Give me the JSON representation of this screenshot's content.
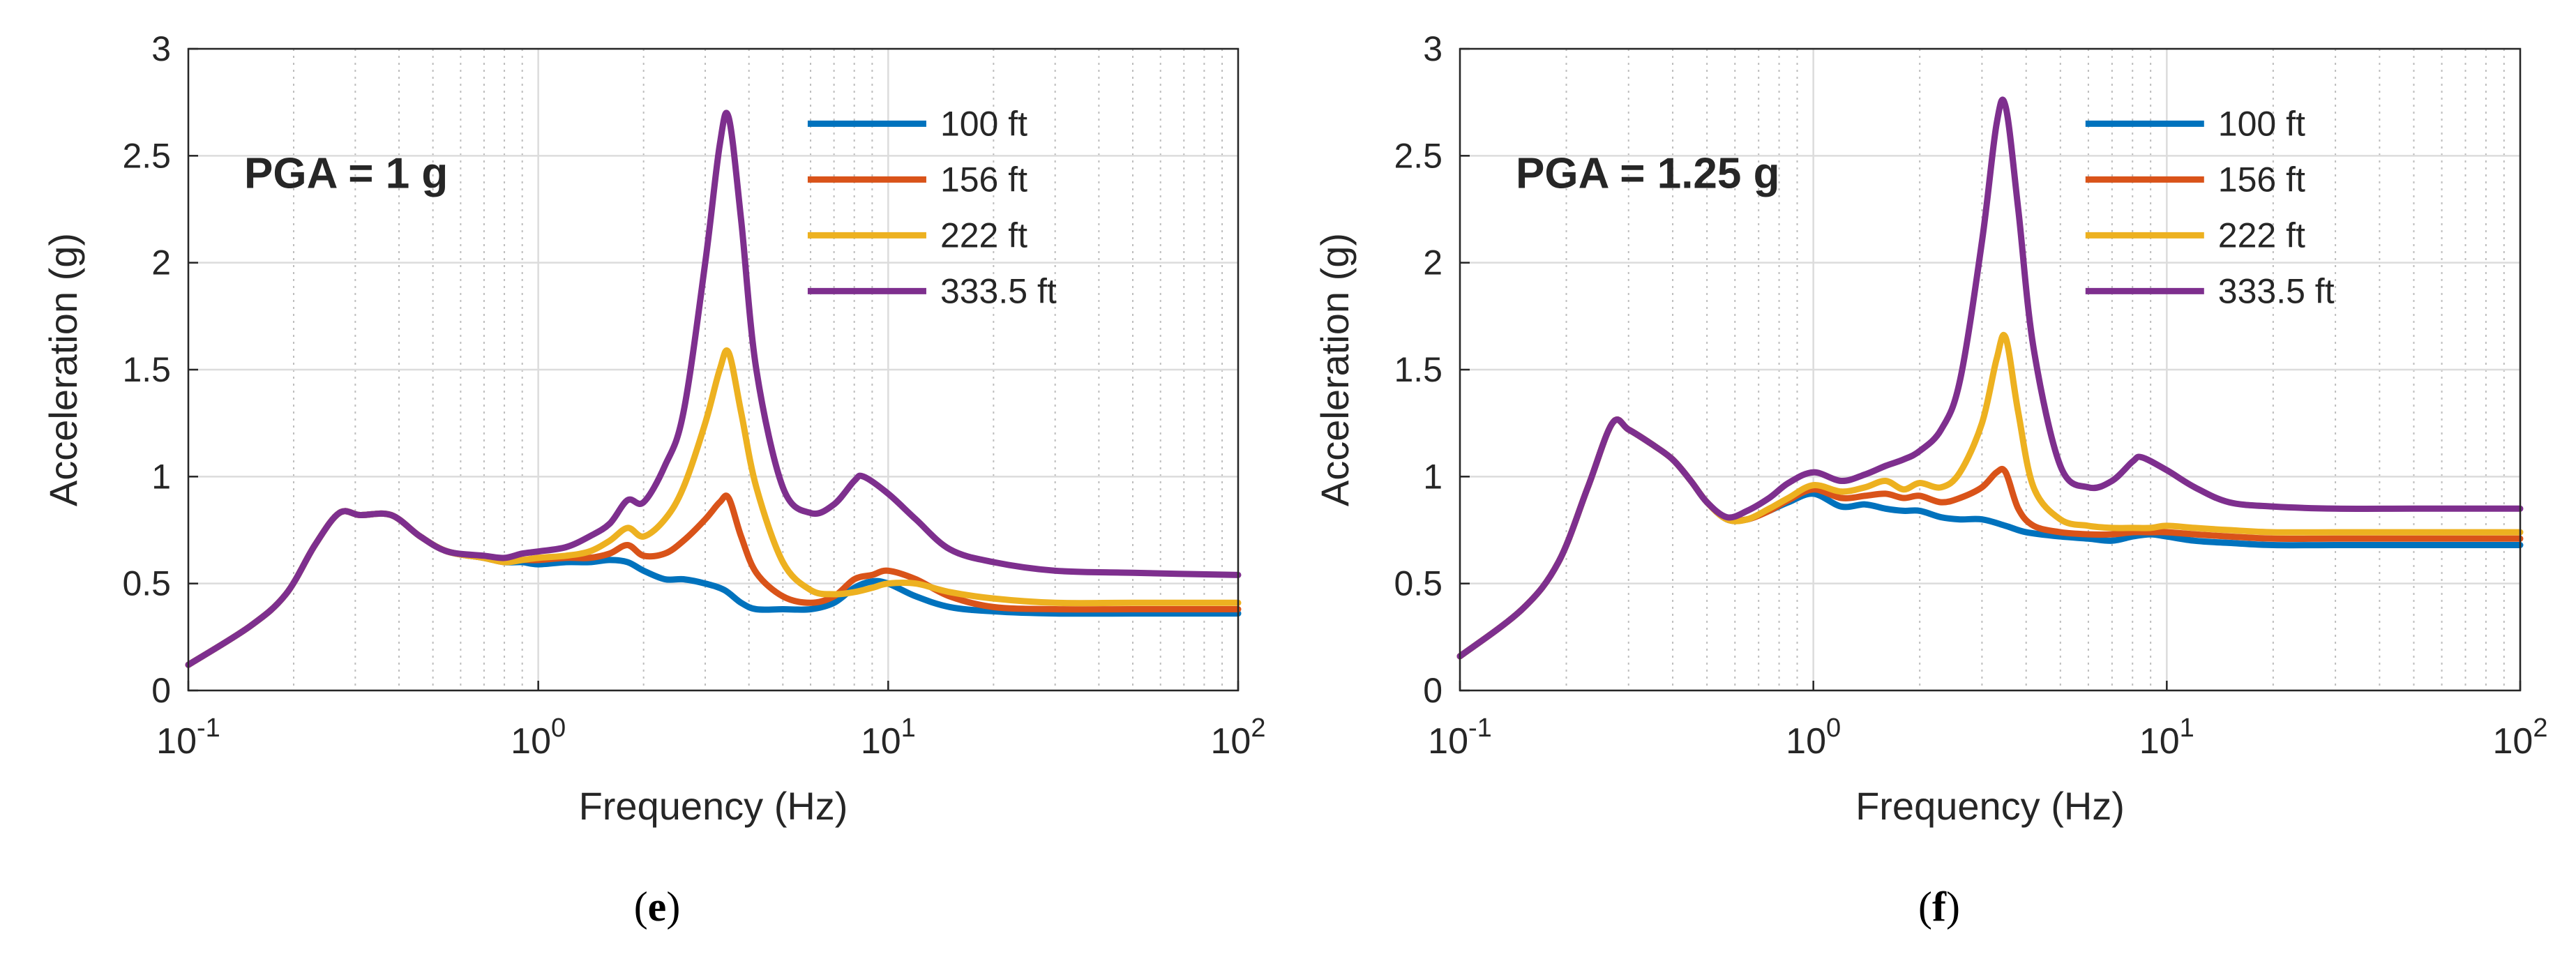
{
  "colors": {
    "s100": "#0072BD",
    "s156": "#D95319",
    "s222": "#EDB120",
    "s333": "#7E2F8E",
    "axis": "#262626",
    "grid_major": "#dcdcdc",
    "grid_minor": "#bdbdbd"
  },
  "chart_data": [
    {
      "type": "line",
      "caption_letter": "e",
      "annotation": "PGA = 1 g",
      "xlabel": "Frequency (Hz)",
      "ylabel": "Acceleration (g)",
      "xscale": "log",
      "xlim": [
        0.1,
        100
      ],
      "ylim": [
        0,
        3
      ],
      "xticks": [
        {
          "value": 0.1,
          "base": "10",
          "exp": "-1"
        },
        {
          "value": 1,
          "base": "10",
          "exp": "0"
        },
        {
          "value": 10,
          "base": "10",
          "exp": "1"
        },
        {
          "value": 100,
          "base": "10",
          "exp": "2"
        }
      ],
      "yticks": [
        "0",
        "0.5",
        "1",
        "1.5",
        "2",
        "2.5",
        "3"
      ],
      "grid": true,
      "legend_position": "top-right",
      "series": [
        {
          "name": "100 ft",
          "color_key": "s100",
          "x": [
            0.1,
            0.15,
            0.19,
            0.23,
            0.27,
            0.31,
            0.38,
            0.46,
            0.55,
            0.7,
            0.8,
            0.9,
            1.0,
            1.2,
            1.4,
            1.6,
            1.8,
            2.0,
            2.3,
            2.6,
            3.0,
            3.4,
            3.8,
            4.2,
            5.0,
            6.0,
            7.0,
            8.0,
            9.0,
            10.0,
            12.0,
            15.0,
            20.0,
            30.0,
            50.0,
            100.0
          ],
          "y": [
            0.12,
            0.3,
            0.45,
            0.68,
            0.83,
            0.82,
            0.82,
            0.72,
            0.65,
            0.62,
            0.6,
            0.6,
            0.59,
            0.6,
            0.6,
            0.61,
            0.6,
            0.56,
            0.52,
            0.52,
            0.5,
            0.47,
            0.41,
            0.38,
            0.38,
            0.38,
            0.41,
            0.48,
            0.51,
            0.5,
            0.44,
            0.39,
            0.37,
            0.36,
            0.36,
            0.36
          ]
        },
        {
          "name": "156 ft",
          "color_key": "s156",
          "x": [
            0.1,
            0.15,
            0.19,
            0.23,
            0.27,
            0.31,
            0.38,
            0.46,
            0.55,
            0.7,
            0.8,
            0.9,
            1.0,
            1.2,
            1.4,
            1.6,
            1.8,
            2.0,
            2.3,
            2.6,
            3.0,
            3.3,
            3.5,
            3.8,
            4.2,
            5.0,
            6.0,
            7.0,
            8.0,
            9.0,
            10.0,
            12.0,
            15.0,
            20.0,
            30.0,
            50.0,
            100.0
          ],
          "y": [
            0.12,
            0.3,
            0.45,
            0.68,
            0.83,
            0.82,
            0.82,
            0.72,
            0.65,
            0.62,
            0.6,
            0.61,
            0.61,
            0.62,
            0.62,
            0.64,
            0.68,
            0.63,
            0.64,
            0.7,
            0.8,
            0.88,
            0.9,
            0.72,
            0.55,
            0.44,
            0.41,
            0.44,
            0.52,
            0.54,
            0.56,
            0.52,
            0.44,
            0.39,
            0.38,
            0.38,
            0.38
          ]
        },
        {
          "name": "222 ft",
          "color_key": "s222",
          "x": [
            0.1,
            0.15,
            0.19,
            0.23,
            0.27,
            0.31,
            0.38,
            0.46,
            0.55,
            0.7,
            0.8,
            0.9,
            1.0,
            1.2,
            1.4,
            1.6,
            1.8,
            2.0,
            2.3,
            2.6,
            3.0,
            3.3,
            3.5,
            3.8,
            4.2,
            5.0,
            6.0,
            7.0,
            8.0,
            9.0,
            10.0,
            12.0,
            15.0,
            20.0,
            30.0,
            50.0,
            100.0
          ],
          "y": [
            0.12,
            0.3,
            0.45,
            0.68,
            0.83,
            0.82,
            0.82,
            0.72,
            0.65,
            0.62,
            0.6,
            0.61,
            0.62,
            0.63,
            0.65,
            0.7,
            0.76,
            0.72,
            0.8,
            0.95,
            1.25,
            1.5,
            1.58,
            1.3,
            0.95,
            0.6,
            0.47,
            0.45,
            0.46,
            0.48,
            0.5,
            0.5,
            0.46,
            0.43,
            0.41,
            0.41,
            0.41
          ]
        },
        {
          "name": "333.5 ft",
          "color_key": "s333",
          "x": [
            0.1,
            0.15,
            0.19,
            0.23,
            0.27,
            0.31,
            0.38,
            0.46,
            0.55,
            0.7,
            0.8,
            0.9,
            1.0,
            1.2,
            1.4,
            1.6,
            1.8,
            2.0,
            2.3,
            2.6,
            3.0,
            3.3,
            3.5,
            3.8,
            4.2,
            5.0,
            6.0,
            7.0,
            8.0,
            8.5,
            10.0,
            12.0,
            15.0,
            20.0,
            30.0,
            50.0,
            100.0
          ],
          "y": [
            0.12,
            0.3,
            0.45,
            0.68,
            0.83,
            0.82,
            0.82,
            0.72,
            0.65,
            0.63,
            0.62,
            0.64,
            0.65,
            0.67,
            0.72,
            0.78,
            0.89,
            0.88,
            1.05,
            1.3,
            2.0,
            2.55,
            2.68,
            2.2,
            1.5,
            0.95,
            0.83,
            0.87,
            0.98,
            1.0,
            0.92,
            0.8,
            0.66,
            0.6,
            0.56,
            0.55,
            0.54
          ]
        }
      ]
    },
    {
      "type": "line",
      "caption_letter": "f",
      "annotation": "PGA = 1.25 g",
      "xlabel": "Frequency (Hz)",
      "ylabel": "Acceleration (g)",
      "xscale": "log",
      "xlim": [
        0.1,
        100
      ],
      "ylim": [
        0,
        3
      ],
      "xticks": [
        {
          "value": 0.1,
          "base": "10",
          "exp": "-1"
        },
        {
          "value": 1,
          "base": "10",
          "exp": "0"
        },
        {
          "value": 10,
          "base": "10",
          "exp": "1"
        },
        {
          "value": 100,
          "base": "10",
          "exp": "2"
        }
      ],
      "yticks": [
        "0",
        "0.5",
        "1",
        "1.5",
        "2",
        "2.5",
        "3"
      ],
      "grid": true,
      "legend_position": "top-right",
      "series": [
        {
          "name": "100 ft",
          "color_key": "s100",
          "x": [
            0.1,
            0.15,
            0.19,
            0.23,
            0.27,
            0.3,
            0.35,
            0.4,
            0.45,
            0.5,
            0.57,
            0.65,
            0.75,
            0.85,
            1.0,
            1.2,
            1.4,
            1.6,
            1.8,
            2.0,
            2.3,
            2.6,
            3.0,
            3.5,
            4.0,
            5.0,
            6.0,
            7.0,
            8.0,
            9.0,
            10.0,
            12.0,
            15.0,
            20.0,
            30.0,
            50.0,
            100.0
          ],
          "y": [
            0.16,
            0.38,
            0.6,
            0.95,
            1.25,
            1.22,
            1.15,
            1.08,
            0.98,
            0.88,
            0.8,
            0.8,
            0.84,
            0.88,
            0.92,
            0.86,
            0.87,
            0.85,
            0.84,
            0.84,
            0.81,
            0.8,
            0.8,
            0.77,
            0.74,
            0.72,
            0.71,
            0.7,
            0.72,
            0.73,
            0.72,
            0.7,
            0.69,
            0.68,
            0.68,
            0.68,
            0.68
          ]
        },
        {
          "name": "156 ft",
          "color_key": "s156",
          "x": [
            0.1,
            0.15,
            0.19,
            0.23,
            0.27,
            0.3,
            0.35,
            0.4,
            0.45,
            0.5,
            0.57,
            0.65,
            0.75,
            0.85,
            1.0,
            1.2,
            1.4,
            1.6,
            1.8,
            2.0,
            2.3,
            2.6,
            3.0,
            3.3,
            3.5,
            3.8,
            4.2,
            5.0,
            6.0,
            7.0,
            8.0,
            9.0,
            10.0,
            12.0,
            15.0,
            20.0,
            30.0,
            50.0,
            100.0
          ],
          "y": [
            0.16,
            0.38,
            0.6,
            0.95,
            1.25,
            1.22,
            1.15,
            1.08,
            0.98,
            0.88,
            0.8,
            0.8,
            0.84,
            0.89,
            0.94,
            0.9,
            0.91,
            0.92,
            0.9,
            0.91,
            0.88,
            0.9,
            0.95,
            1.02,
            1.02,
            0.85,
            0.77,
            0.74,
            0.73,
            0.73,
            0.74,
            0.74,
            0.74,
            0.73,
            0.72,
            0.71,
            0.71,
            0.71,
            0.71
          ]
        },
        {
          "name": "222 ft",
          "color_key": "s222",
          "x": [
            0.1,
            0.15,
            0.19,
            0.23,
            0.27,
            0.3,
            0.35,
            0.4,
            0.45,
            0.5,
            0.57,
            0.65,
            0.75,
            0.85,
            1.0,
            1.2,
            1.4,
            1.6,
            1.8,
            2.0,
            2.3,
            2.6,
            3.0,
            3.3,
            3.5,
            3.8,
            4.2,
            5.0,
            6.0,
            7.0,
            8.0,
            9.0,
            10.0,
            12.0,
            15.0,
            20.0,
            30.0,
            50.0,
            100.0
          ],
          "y": [
            0.16,
            0.38,
            0.6,
            0.95,
            1.25,
            1.22,
            1.15,
            1.08,
            0.98,
            0.88,
            0.8,
            0.8,
            0.85,
            0.9,
            0.96,
            0.93,
            0.95,
            0.98,
            0.94,
            0.97,
            0.95,
            1.02,
            1.25,
            1.55,
            1.65,
            1.3,
            0.95,
            0.8,
            0.77,
            0.76,
            0.76,
            0.76,
            0.77,
            0.76,
            0.75,
            0.74,
            0.74,
            0.74,
            0.74
          ]
        },
        {
          "name": "333.5 ft",
          "color_key": "s333",
          "x": [
            0.1,
            0.15,
            0.19,
            0.23,
            0.27,
            0.3,
            0.35,
            0.4,
            0.45,
            0.5,
            0.57,
            0.65,
            0.75,
            0.85,
            1.0,
            1.2,
            1.4,
            1.6,
            1.8,
            2.0,
            2.3,
            2.6,
            3.0,
            3.3,
            3.5,
            3.8,
            4.2,
            5.0,
            6.0,
            7.0,
            8.0,
            8.5,
            10.0,
            12.0,
            15.0,
            20.0,
            30.0,
            50.0,
            100.0
          ],
          "y": [
            0.16,
            0.38,
            0.6,
            0.95,
            1.25,
            1.22,
            1.15,
            1.08,
            0.98,
            0.88,
            0.81,
            0.84,
            0.9,
            0.97,
            1.02,
            0.98,
            1.01,
            1.05,
            1.08,
            1.12,
            1.22,
            1.45,
            2.1,
            2.65,
            2.73,
            2.25,
            1.6,
            1.05,
            0.95,
            0.98,
            1.07,
            1.09,
            1.03,
            0.95,
            0.88,
            0.86,
            0.85,
            0.85,
            0.85
          ]
        }
      ]
    }
  ]
}
